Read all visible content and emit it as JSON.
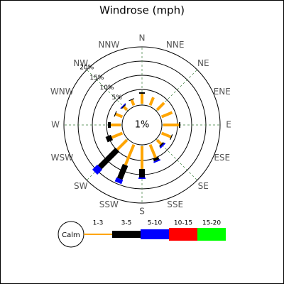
{
  "chart_data": {
    "type": "windrose",
    "title": "Windrose (mph)",
    "categories": [
      "N",
      "NNE",
      "NE",
      "ENE",
      "E",
      "ESE",
      "SE",
      "SSE",
      "S",
      "SSW",
      "SW",
      "WSW",
      "W",
      "WNW",
      "NW",
      "NNW"
    ],
    "series": [
      {
        "name": "1-3",
        "color": "#ffa500",
        "values": [
          3.5,
          3,
          3.5,
          4,
          5.5,
          3.5,
          2,
          5,
          8,
          7.75,
          4.75,
          4,
          3.5,
          2.5,
          1.5,
          2
        ]
      },
      {
        "name": "3-5",
        "color": "#000000",
        "values": [
          0.5,
          0,
          0,
          0,
          0.5,
          0.3,
          0.5,
          1,
          3,
          5.25,
          8.75,
          2,
          1,
          0.3,
          0.3,
          0.3
        ]
      },
      {
        "name": "5-10",
        "color": "#0000ff",
        "values": [
          0,
          0,
          0,
          0,
          0,
          0,
          0.5,
          0.5,
          0.5,
          1.5,
          2.5,
          0,
          0,
          0,
          0.3,
          0
        ]
      },
      {
        "name": "10-15",
        "color": "#ff0000",
        "values": [
          0,
          0,
          0,
          0,
          0,
          0,
          0,
          0,
          0,
          0,
          0,
          0,
          0,
          0,
          0,
          0
        ]
      },
      {
        "name": "15-20",
        "color": "#00ff00",
        "values": [
          0,
          0,
          0,
          0,
          0,
          0,
          0,
          0,
          0,
          0,
          0,
          0,
          0,
          0,
          0,
          0
        ]
      }
    ],
    "rlim": [
      0,
      20
    ],
    "rticks": [
      {
        "value": 5,
        "label": "5%"
      },
      {
        "value": 10,
        "label": "10%"
      },
      {
        "value": 15,
        "label": "15%"
      },
      {
        "value": 20,
        "label": "20%"
      }
    ],
    "calm_label": "Calm",
    "calm_value": 1,
    "calm_value_label": "1%",
    "grid": true
  }
}
